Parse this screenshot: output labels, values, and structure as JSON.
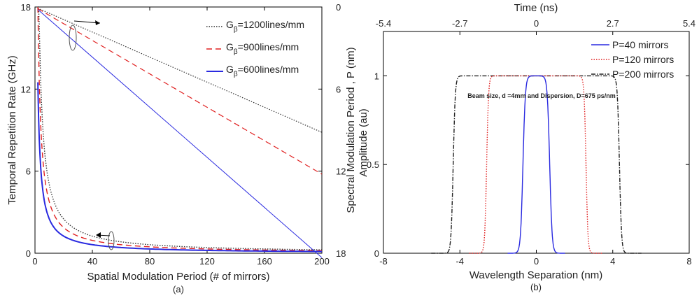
{
  "chart_data": [
    {
      "panel_label": "(a)",
      "type": "line",
      "xlabel": "Spatial Modulation Period (# of mirrors)",
      "ylabel": "Temporal Repetition Rate (GHz)",
      "ylabel_right": "Spectral Modulation Period , P (nm)",
      "xlim": [
        0,
        200
      ],
      "ylim": [
        0,
        18
      ],
      "ylim_right": [
        0,
        18
      ],
      "right_axis_inverted": true,
      "xticks": [
        "0",
        "40",
        "80",
        "120",
        "160",
        "200"
      ],
      "yticks": [
        "0",
        "6",
        "12",
        "18"
      ],
      "yticks_right": [
        "0",
        "6",
        "12",
        "18"
      ],
      "legend_position": "top-right",
      "series": [
        {
          "name": "G_β=1200lines/mm",
          "legend_main": "G",
          "legend_sub": "β",
          "legend_rest": "=1200lines/mm",
          "color": "#333333",
          "style": "dotted",
          "rate_k": 50,
          "spectral_slope": 0.0458
        },
        {
          "name": "G_β=900lines/mm",
          "legend_main": "G",
          "legend_sub": "β",
          "legend_rest": "=900lines/mm",
          "color": "#e02020",
          "style": "dashed",
          "rate_k": 37.5,
          "spectral_slope": 0.0611
        },
        {
          "name": "G_β=600lines/mm",
          "legend_main": "G",
          "legend_sub": "β",
          "legend_rest": "=600lines/mm",
          "color": "#2a2ae0",
          "style": "solid",
          "rate_k": 25,
          "spectral_slope": 0.0916
        }
      ],
      "x_start": 2,
      "annotations": [
        "arrow-to-right-axis",
        "arrow-to-left-axis"
      ]
    },
    {
      "panel_label": "(b)",
      "type": "line",
      "xlabel": "Wavelength Separation (nm)",
      "ylabel": "Amplitude (au)",
      "top_xlabel": "Time (ns)",
      "xlim": [
        -8,
        8
      ],
      "ylim": [
        0,
        1.25
      ],
      "xticks": [
        "-8",
        "-4",
        "0",
        "4",
        "8"
      ],
      "yticks": [
        "0",
        "0.5",
        "1"
      ],
      "top_xticks": [
        "-5.4",
        "-2.7",
        "0",
        "2.7",
        "5.4"
      ],
      "annotation": "Beam size, d =4mm and Dispersion, D=675 ps/nm",
      "legend_position": "top-right",
      "series": [
        {
          "name": "P=40 mirrors",
          "color": "#2a2ae0",
          "style": "solid",
          "half_width": 0.7,
          "edge": 0.25,
          "extent": 1.5
        },
        {
          "name": "P=120 mirrors",
          "color": "#e02020",
          "style": "dotted",
          "half_width": 2.6,
          "edge": 0.2,
          "extent": 3.5
        },
        {
          "name": "P=200 mirrors",
          "color": "#222222",
          "style": "dashdot",
          "half_width": 4.35,
          "edge": 0.22,
          "extent": 5.5
        }
      ]
    }
  ]
}
